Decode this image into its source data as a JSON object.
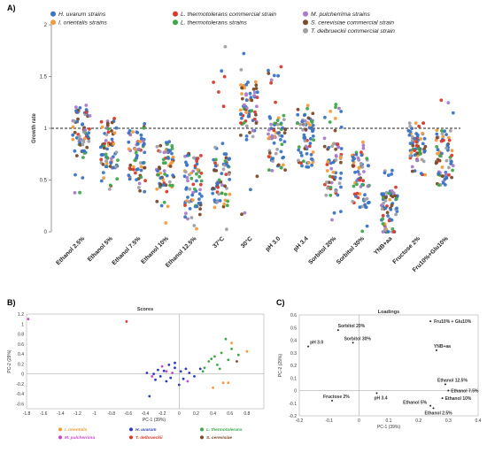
{
  "panels": {
    "a_label": "A)",
    "b_label": "B)",
    "c_label": "C)"
  },
  "chart_data": [
    {
      "type": "scatter",
      "title": "",
      "ylabel": "Growth rate",
      "ylim": [
        0,
        2
      ],
      "yticks": [
        "0",
        "0.5",
        "1",
        "1.5",
        "2"
      ],
      "reference_line": 1,
      "legend": [
        {
          "label": "H. uvarum strains",
          "color": "#3a74c4"
        },
        {
          "label": "I. orientalis strains",
          "color": "#f29b3c"
        },
        {
          "label": "L. thermotolerans commercial strain",
          "color": "#d93a2b"
        },
        {
          "label": "L. thermotolerans strains",
          "color": "#3fa64a"
        },
        {
          "label": "M. pulcherrima strains",
          "color": "#a77bc8"
        },
        {
          "label": "S. cerevisiae commercial strain",
          "color": "#7a4a2a"
        },
        {
          "label": "T. delbrueckii commercial strain",
          "color": "#9ea0a5"
        }
      ],
      "categories": [
        "Ethanol 2.5%",
        "Ethanol 5%",
        "Ethanol 7.5%",
        "Ethanol 10%",
        "Ethanol 12.5%",
        "37°C",
        "30°C",
        "pH 3.0",
        "pH 3.4",
        "Sorbitol 20%",
        "Sorbitol 30%",
        "YNB+aa",
        "Fructose 2%",
        "Fru10%+Glu10%"
      ],
      "category_stats": [
        {
          "center": 0.97,
          "min": 0.35,
          "max": 1.24
        },
        {
          "center": 0.86,
          "min": 0.35,
          "max": 1.1
        },
        {
          "center": 0.75,
          "min": 0.3,
          "max": 1.07
        },
        {
          "center": 0.65,
          "min": 0.0,
          "max": 0.88
        },
        {
          "center": 0.5,
          "min": 0.0,
          "max": 0.77
        },
        {
          "center": 0.5,
          "min": 0.0,
          "max": 1.85
        },
        {
          "center": 1.18,
          "min": 0.0,
          "max": 1.82
        },
        {
          "center": 0.85,
          "min": 0.57,
          "max": 1.6
        },
        {
          "center": 0.88,
          "min": 0.6,
          "max": 1.25
        },
        {
          "center": 0.6,
          "min": 0.0,
          "max": 1.28
        },
        {
          "center": 0.5,
          "min": 0.0,
          "max": 0.95
        },
        {
          "center": 0.18,
          "min": 0.0,
          "max": 0.66
        },
        {
          "center": 0.88,
          "min": 0.52,
          "max": 1.05
        },
        {
          "center": 0.72,
          "min": 0.42,
          "max": 1.33
        }
      ]
    },
    {
      "type": "scatter",
      "title": "Scores",
      "xlabel": "PC-1 (39%)",
      "ylabel": "PC-2 (29%)",
      "xlim": [
        -1.8,
        1.0
      ],
      "ylim": [
        -0.7,
        1.2
      ],
      "xticks": [
        "-1.8",
        "-1.6",
        "-1.4",
        "-1.2",
        "-1",
        "-0.8",
        "-0.6",
        "-0.4",
        "-0.2",
        "0",
        "0.2",
        "0.4",
        "0.6",
        "0.8"
      ],
      "yticks": [
        "-0.6",
        "-0.4",
        "-0.2",
        "0",
        "0.2",
        "0.4",
        "0.6",
        "0.8",
        "1",
        "1.2"
      ],
      "legend": [
        {
          "label": "I. orientalis",
          "color": "#f29b3c"
        },
        {
          "label": "H. uvarum",
          "color": "#2d3bbd"
        },
        {
          "label": "L. thermotolerans",
          "color": "#3fa64a"
        },
        {
          "label": "M. pulcherrima",
          "color": "#cc44cc"
        },
        {
          "label": "T. delbrueckii",
          "color": "#d93a2b"
        },
        {
          "label": "S. cerevisiae",
          "color": "#7a4a2a"
        }
      ],
      "points": [
        {
          "x": -1.78,
          "y": 1.1,
          "color": "#cc44cc"
        },
        {
          "x": -0.62,
          "y": 1.05,
          "color": "#d93a2b"
        },
        {
          "x": -0.35,
          "y": -0.45,
          "color": "#2d3bbd"
        },
        {
          "x": -0.12,
          "y": 0.18,
          "color": "#2d3bbd"
        },
        {
          "x": -0.05,
          "y": 0.12,
          "color": "#2d3bbd"
        },
        {
          "x": 0.02,
          "y": 0.05,
          "color": "#2d3bbd"
        },
        {
          "x": -0.18,
          "y": 0.06,
          "color": "#2d3bbd"
        },
        {
          "x": -0.25,
          "y": 0.08,
          "color": "#2d3bbd"
        },
        {
          "x": -0.3,
          "y": 0.0,
          "color": "#2d3bbd"
        },
        {
          "x": -0.22,
          "y": -0.05,
          "color": "#2d3bbd"
        },
        {
          "x": -0.1,
          "y": -0.08,
          "color": "#2d3bbd"
        },
        {
          "x": 0.05,
          "y": -0.1,
          "color": "#2d3bbd"
        },
        {
          "x": 0.12,
          "y": 0.02,
          "color": "#2d3bbd"
        },
        {
          "x": 0.08,
          "y": 0.1,
          "color": "#2d3bbd"
        },
        {
          "x": -0.15,
          "y": -0.15,
          "color": "#2d3bbd"
        },
        {
          "x": -0.28,
          "y": -0.12,
          "color": "#2d3bbd"
        },
        {
          "x": -0.38,
          "y": 0.02,
          "color": "#2d3bbd"
        },
        {
          "x": 0.0,
          "y": -0.22,
          "color": "#2d3bbd"
        },
        {
          "x": 0.18,
          "y": -0.05,
          "color": "#2d3bbd"
        },
        {
          "x": -0.05,
          "y": 0.22,
          "color": "#2d3bbd"
        },
        {
          "x": 0.25,
          "y": 0.1,
          "color": "#2d3bbd"
        },
        {
          "x": -0.2,
          "y": 0.15,
          "color": "#cc44cc"
        },
        {
          "x": -0.32,
          "y": -0.05,
          "color": "#cc44cc"
        },
        {
          "x": -0.08,
          "y": 0.02,
          "color": "#cc44cc"
        },
        {
          "x": 0.1,
          "y": -0.15,
          "color": "#cc44cc"
        },
        {
          "x": -0.15,
          "y": 0.05,
          "color": "#cc44cc"
        },
        {
          "x": 0.35,
          "y": 0.25,
          "color": "#3fa64a"
        },
        {
          "x": 0.42,
          "y": 0.35,
          "color": "#3fa64a"
        },
        {
          "x": 0.5,
          "y": 0.42,
          "color": "#3fa64a"
        },
        {
          "x": 0.55,
          "y": 0.7,
          "color": "#3fa64a"
        },
        {
          "x": 0.62,
          "y": 0.5,
          "color": "#3fa64a"
        },
        {
          "x": 0.45,
          "y": 0.18,
          "color": "#3fa64a"
        },
        {
          "x": 0.3,
          "y": 0.12,
          "color": "#3fa64a"
        },
        {
          "x": 0.38,
          "y": 0.3,
          "color": "#3fa64a"
        },
        {
          "x": 0.48,
          "y": 0.1,
          "color": "#3fa64a"
        },
        {
          "x": 0.58,
          "y": 0.28,
          "color": "#3fa64a"
        },
        {
          "x": 0.7,
          "y": 0.38,
          "color": "#3fa64a"
        },
        {
          "x": 0.28,
          "y": 0.05,
          "color": "#3fa64a"
        },
        {
          "x": 0.52,
          "y": -0.18,
          "color": "#f29b3c"
        },
        {
          "x": 0.58,
          "y": -0.18,
          "color": "#f29b3c"
        },
        {
          "x": 0.62,
          "y": 0.62,
          "color": "#f29b3c"
        },
        {
          "x": 0.8,
          "y": 0.45,
          "color": "#f29b3c"
        },
        {
          "x": 0.4,
          "y": -0.28,
          "color": "#f29b3c"
        },
        {
          "x": 0.68,
          "y": 0.25,
          "color": "#7a4a2a"
        }
      ]
    },
    {
      "type": "scatter",
      "title": "Loadings",
      "xlabel": "PC-1 (39%)",
      "ylabel": "PC-2 (29%)",
      "xlim": [
        -0.2,
        0.4
      ],
      "ylim": [
        -0.2,
        0.6
      ],
      "xticks": [
        "-0.2",
        "-0.1",
        "0",
        "0.1",
        "0.2",
        "0.3",
        "0.4"
      ],
      "yticks": [
        "-0.2",
        "-0.1",
        "0",
        "0.1",
        "0.2",
        "0.3",
        "0.4",
        "0.5",
        "0.6"
      ],
      "points": [
        {
          "x": 0.24,
          "y": 0.55,
          "label": "Fru10% + Glu10%"
        },
        {
          "x": -0.07,
          "y": 0.48,
          "label": "Sorbitol 20%"
        },
        {
          "x": -0.02,
          "y": 0.38,
          "label": "Sorbitol 30%"
        },
        {
          "x": -0.17,
          "y": 0.35,
          "label": "pH 3.0"
        },
        {
          "x": 0.26,
          "y": 0.32,
          "label": "YNB+aa"
        },
        {
          "x": 0.29,
          "y": 0.05,
          "label": "Ethanol 12.5%"
        },
        {
          "x": 0.3,
          "y": 0.0,
          "label": "Ethanol 7.5%"
        },
        {
          "x": 0.28,
          "y": -0.06,
          "label": "Ethanol 10%"
        },
        {
          "x": 0.24,
          "y": -0.12,
          "label": "Ethanol 5%"
        },
        {
          "x": 0.25,
          "y": -0.14,
          "label": "Ethanol 2.5%"
        },
        {
          "x": -0.09,
          "y": -0.08,
          "label": "Fructose 2%"
        },
        {
          "x": 0.06,
          "y": -0.02,
          "label": "pH 3.4"
        }
      ]
    }
  ]
}
